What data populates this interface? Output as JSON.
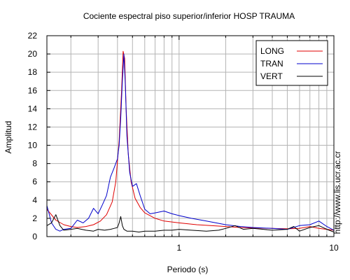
{
  "chart_data": {
    "type": "line",
    "title": "Cociente espectral piso superior/inferior  HOSP TRAUMA",
    "xlabel": "Periodo (s)",
    "ylabel": "Amplitud",
    "watermark": "http://www.lis.ucr.ac.cr",
    "x_scale": "log",
    "xlim": [
      0.14,
      10
    ],
    "ylim": [
      0,
      22
    ],
    "x_ticks": [
      {
        "value": 1,
        "label": "1"
      },
      {
        "value": 10,
        "label": "10"
      }
    ],
    "y_ticks": [
      0,
      2,
      4,
      6,
      8,
      10,
      12,
      14,
      16,
      18,
      20,
      22
    ],
    "grid": true,
    "legend_position": "top-right",
    "series": [
      {
        "name": "LONG",
        "color": "#e00000",
        "x": [
          0.14,
          0.16,
          0.18,
          0.2,
          0.22,
          0.25,
          0.28,
          0.31,
          0.34,
          0.37,
          0.39,
          0.41,
          0.425,
          0.435,
          0.445,
          0.455,
          0.47,
          0.49,
          0.52,
          0.56,
          0.6,
          0.7,
          0.8,
          1.0,
          1.3,
          1.6,
          2.0,
          2.5,
          3.0,
          4.0,
          5.0,
          6.0,
          7.0,
          8.0,
          9.0,
          10.0
        ],
        "y": [
          3.0,
          1.8,
          1.3,
          1.1,
          1.0,
          1.1,
          1.3,
          1.7,
          2.4,
          3.8,
          6.0,
          10.5,
          16.0,
          20.3,
          19.5,
          14.0,
          9.0,
          6.0,
          4.2,
          3.2,
          2.6,
          2.0,
          1.7,
          1.5,
          1.3,
          1.2,
          1.1,
          1.0,
          0.95,
          0.9,
          0.85,
          0.9,
          1.1,
          0.9,
          0.8,
          0.7
        ]
      },
      {
        "name": "TRAN",
        "color": "#0000cc",
        "x": [
          0.14,
          0.15,
          0.16,
          0.17,
          0.18,
          0.2,
          0.22,
          0.24,
          0.26,
          0.28,
          0.3,
          0.32,
          0.34,
          0.36,
          0.38,
          0.4,
          0.41,
          0.42,
          0.43,
          0.44,
          0.45,
          0.46,
          0.48,
          0.5,
          0.53,
          0.56,
          0.6,
          0.65,
          0.7,
          0.8,
          0.9,
          1.0,
          1.2,
          1.5,
          2.0,
          2.5,
          3.0,
          4.0,
          5.0,
          6.0,
          7.0,
          8.0,
          9.0,
          10.0
        ],
        "y": [
          3.4,
          1.5,
          0.8,
          0.6,
          0.8,
          0.9,
          1.8,
          1.5,
          2.0,
          3.1,
          2.5,
          3.5,
          4.5,
          6.5,
          7.5,
          8.5,
          10.0,
          13.0,
          17.0,
          20.0,
          16.5,
          11.0,
          7.0,
          5.5,
          5.8,
          4.5,
          3.0,
          2.5,
          2.6,
          2.8,
          2.5,
          2.3,
          2.0,
          1.7,
          1.3,
          1.1,
          1.0,
          0.9,
          0.8,
          1.2,
          1.3,
          1.7,
          1.1,
          0.7
        ]
      },
      {
        "name": "VERT",
        "color": "#000000",
        "x": [
          0.14,
          0.15,
          0.16,
          0.17,
          0.18,
          0.2,
          0.22,
          0.25,
          0.28,
          0.3,
          0.33,
          0.36,
          0.38,
          0.4,
          0.41,
          0.42,
          0.43,
          0.44,
          0.46,
          0.5,
          0.55,
          0.6,
          0.7,
          0.8,
          0.9,
          1.0,
          1.2,
          1.5,
          1.8,
          2.0,
          2.3,
          2.6,
          3.0,
          3.5,
          4.0,
          5.0,
          5.5,
          6.0,
          7.0,
          8.0,
          9.0,
          10.0
        ],
        "y": [
          1.2,
          1.5,
          2.4,
          1.2,
          0.7,
          0.8,
          0.9,
          0.7,
          0.6,
          0.8,
          0.7,
          0.8,
          0.9,
          1.0,
          1.5,
          2.2,
          1.2,
          0.8,
          0.6,
          0.6,
          0.5,
          0.6,
          0.6,
          0.7,
          0.7,
          0.8,
          0.7,
          0.6,
          0.7,
          0.9,
          1.2,
          0.8,
          0.9,
          0.8,
          0.7,
          0.8,
          1.1,
          0.6,
          1.0,
          1.2,
          0.8,
          0.5
        ]
      }
    ]
  }
}
